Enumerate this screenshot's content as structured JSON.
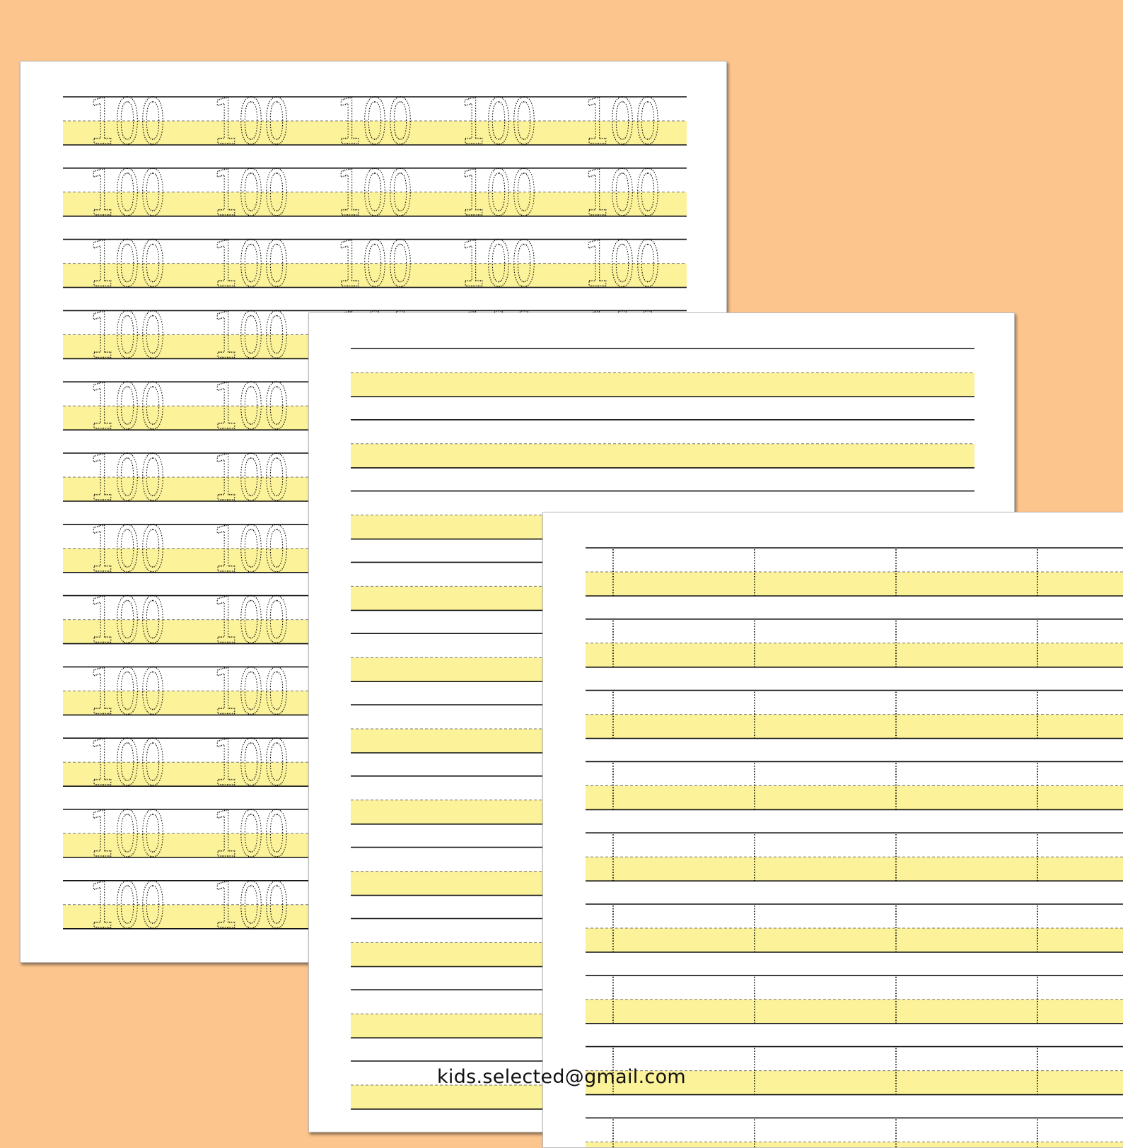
{
  "colors": {
    "background": "#fcc58d",
    "highlight": "#fbf29a",
    "line": "#111111",
    "page": "#ffffff"
  },
  "worksheets": [
    {
      "name": "number-100-tracing",
      "trace_text": "100",
      "rows": 12,
      "repeats_per_row": 5
    },
    {
      "name": "blank-handwriting-lines",
      "rows": 11
    },
    {
      "name": "dotted-column-lines",
      "rows": 9,
      "columns": 4
    }
  ],
  "footer": {
    "email": "kids.selected@gmail.com"
  }
}
